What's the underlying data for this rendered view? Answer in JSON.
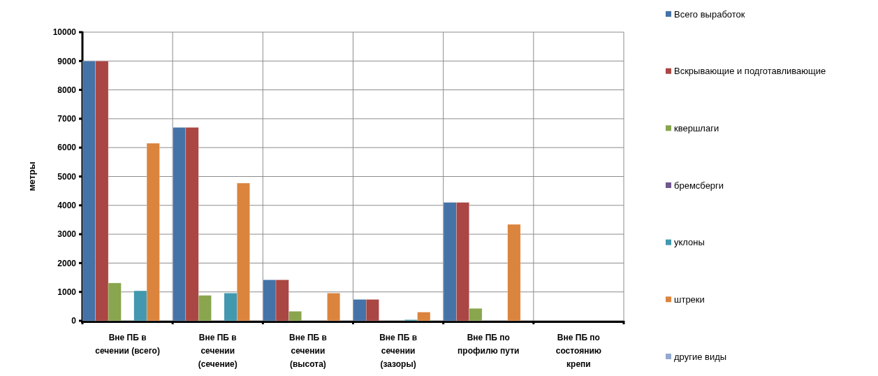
{
  "chart_data": {
    "type": "bar",
    "ylabel": "метры",
    "categories": [
      "Вне ПБ в сечении (всего)",
      "Вне ПБ в сечении (сечение)",
      "Вне ПБ в сечении (высота)",
      "Вне ПБ в сечении (зазоры)",
      "Вне ПБ по профилю пути",
      "Вне ПБ по состоянию крепи"
    ],
    "series": [
      {
        "name": "Всего выработок",
        "color": "#4572a7",
        "values": [
          9000,
          6700,
          1420,
          740,
          4100,
          0
        ]
      },
      {
        "name": "Вскрывающие и подготавливающие",
        "color": "#aa4643",
        "values": [
          9000,
          6700,
          1420,
          740,
          4100,
          0
        ]
      },
      {
        "name": "квершлаги",
        "color": "#89a54e",
        "values": [
          1310,
          880,
          330,
          0,
          430,
          0
        ]
      },
      {
        "name": "бремсберги",
        "color": "#71588f",
        "values": [
          0,
          0,
          0,
          0,
          0,
          0
        ]
      },
      {
        "name": "уклоны",
        "color": "#4198af",
        "values": [
          1040,
          960,
          0,
          40,
          0,
          0
        ]
      },
      {
        "name": "штреки",
        "color": "#db843d",
        "values": [
          6150,
          4770,
          960,
          300,
          3340,
          0
        ]
      },
      {
        "name": "другие виды",
        "color": "#93a9cf",
        "values": [
          0,
          0,
          0,
          0,
          0,
          0
        ]
      }
    ],
    "ylim": [
      0,
      10000
    ],
    "yticks": [
      0,
      1000,
      2000,
      3000,
      4000,
      5000,
      6000,
      7000,
      8000,
      9000,
      10000
    ],
    "grid": true,
    "legend": "right"
  }
}
